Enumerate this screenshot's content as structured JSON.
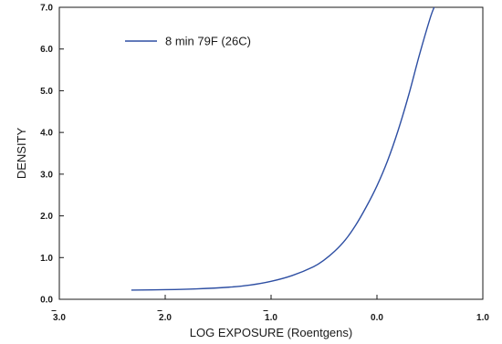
{
  "chart_data": {
    "type": "line",
    "title": "",
    "xlabel": "LOG EXPOSURE (Roentgens)",
    "ylabel": "DENSITY",
    "xlim": [
      -3.0,
      1.0
    ],
    "ylim": [
      0.0,
      7.0
    ],
    "x_ticks": [
      {
        "value": -3.0,
        "digit": "3",
        "rest": ".0",
        "bar": true
      },
      {
        "value": -2.0,
        "digit": "2",
        "rest": ".0",
        "bar": true
      },
      {
        "value": -1.0,
        "digit": "1",
        "rest": ".0",
        "bar": true
      },
      {
        "value": 0.0,
        "digit": "0",
        "rest": ".0",
        "bar": false
      },
      {
        "value": 1.0,
        "digit": "1",
        "rest": ".0",
        "bar": false
      }
    ],
    "y_ticks": [
      "0.0",
      "1.0",
      "2.0",
      "3.0",
      "4.0",
      "5.0",
      "6.0",
      "7.0"
    ],
    "grid": false,
    "legend_position": "top-left",
    "series": [
      {
        "name": "8 min 79F (26C)",
        "color": "#2e4fa3",
        "x": [
          -2.32,
          -2.0,
          -1.7,
          -1.4,
          -1.2,
          -1.0,
          -0.8,
          -0.6,
          -0.5,
          -0.4,
          -0.3,
          -0.2,
          -0.1,
          0.0,
          0.1,
          0.2,
          0.3,
          0.4,
          0.5,
          0.54
        ],
        "y": [
          0.22,
          0.23,
          0.25,
          0.29,
          0.34,
          0.43,
          0.57,
          0.78,
          0.94,
          1.15,
          1.42,
          1.78,
          2.22,
          2.72,
          3.32,
          4.05,
          4.9,
          5.85,
          6.72,
          7.0
        ]
      }
    ]
  }
}
